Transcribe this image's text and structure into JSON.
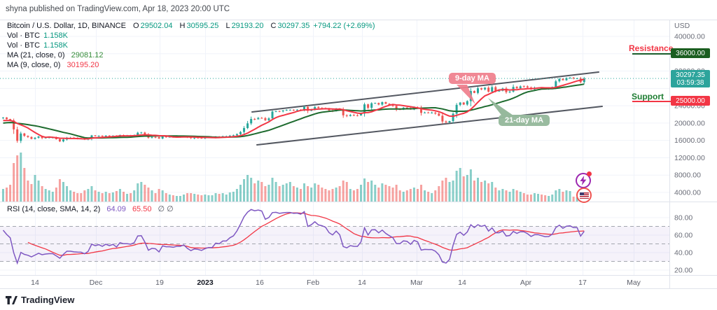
{
  "attribution": "shyna published on TradingView.com, Apr 18, 2023 20:00 UTC",
  "watermark": "TradingView",
  "legend": {
    "symbol": "Bitcoin / U.S. Dollar, 1D, BINANCE",
    "o_label": "O",
    "o": "29502.04",
    "h_label": "H",
    "h": "30595.25",
    "l_label": "L",
    "l": "29193.20",
    "c_label": "C",
    "c": "30297.35",
    "change": "+794.22 (+2.69%)",
    "vol1_label": "Vol · BTC",
    "vol1": "1.158K",
    "vol2_label": "Vol · BTC",
    "vol2": "1.158K",
    "ma21_label": "MA (21, close, 0)",
    "ma21": "29081.12",
    "ma9_label": "MA (9, close, 0)",
    "ma9": "30195.20"
  },
  "rsi_legend": {
    "label": "RSI (14, close, SMA, 14, 2)",
    "rsi": "64.09",
    "sma": "65.50",
    "extra": "∅ ∅"
  },
  "annotations": {
    "axis_currency": "USD",
    "resistance_label": "Resistance",
    "resistance_badge": "36000.00",
    "support_label": "Support",
    "support_badge": "25000.00",
    "price_badge": "30297.35",
    "countdown": "03:59:38",
    "ma9_callout": "9-day MA",
    "ma21_callout": "21-day MA"
  },
  "colors": {
    "up": "#26a69a",
    "down": "#ef5350",
    "ma9": "#f23645",
    "ma21": "#1e6b2f",
    "rsi": "#7e57c2",
    "rsi_sma": "#f23645",
    "resistance_badge_bg": "#1b5e20",
    "support_badge_bg": "#f23645",
    "price_badge_bg": "#2da49c",
    "channel": "#545861",
    "grid": "#f0f3fa",
    "axis_text": "#6a6d78"
  },
  "chart_data": {
    "type": "candlestick+volume+rsi",
    "title": "Bitcoin / U.S. Dollar, 1D, BINANCE",
    "last_ohlc": {
      "open": 29502.04,
      "high": 30595.25,
      "low": 29193.2,
      "close": 30297.35,
      "change": 794.22,
      "change_pct": 2.69
    },
    "current_price": 30297.35,
    "resistance": 36000,
    "support": 25000,
    "visible_start_index": 20,
    "closes": [
      19260,
      19550,
      19330,
      19040,
      19160,
      19570,
      19170,
      19330,
      19080,
      20080,
      20770,
      20280,
      20820,
      20630,
      20490,
      20150,
      20480,
      20150,
      20210,
      21150,
      21300,
      20920,
      20600,
      18550,
      15900,
      17600,
      17050,
      16800,
      16350,
      16620,
      16900,
      16550,
      16650,
      16700,
      16700,
      16280,
      15780,
      16220,
      16600,
      16600,
      16500,
      16450,
      16440,
      16220,
      16440,
      17160,
      16980,
      17090,
      16910,
      17110,
      16970,
      17090,
      16840,
      17230,
      17130,
      17130,
      17090,
      17210,
      17780,
      17810,
      17360,
      16630,
      16780,
      16740,
      16440,
      16900,
      16820,
      16820,
      16780,
      16840,
      16840,
      16920,
      16700,
      16540,
      16630,
      16600,
      16540,
      16620,
      16670,
      16670,
      16860,
      16830,
      16950,
      16950,
      17090,
      17180,
      17440,
      17940,
      18850,
      19930,
      20950,
      20880,
      21180,
      21130,
      20670,
      21080,
      22660,
      22780,
      22710,
      22920,
      23060,
      23060,
      23010,
      23080,
      23030,
      23740,
      22830,
      23130,
      23720,
      23490,
      23430,
      23330,
      22930,
      22760,
      23250,
      22960,
      21790,
      21630,
      21860,
      21780,
      21770,
      22200,
      24320,
      23520,
      24570,
      24630,
      24270,
      24830,
      24450,
      24180,
      23940,
      23180,
      23160,
      23550,
      23490,
      23130,
      23640,
      23460,
      22350,
      22430,
      22410,
      22410,
      22200,
      21700,
      20360,
      20150,
      20470,
      22160,
      24200,
      24740,
      24280,
      25060,
      27400,
      26960,
      28030,
      27770,
      28160,
      27250,
      28290,
      27460,
      27460,
      27970,
      27120,
      27260,
      28350,
      28030,
      28470,
      28460,
      28200,
      27790,
      28160,
      28170,
      28040,
      27920,
      27940,
      28330,
      29640,
      30220,
      29890,
      30400,
      30480,
      30310,
      30310,
      29450,
      30297.35
    ],
    "volumes": [
      12,
      12,
      12,
      12,
      12,
      12,
      12,
      12,
      12,
      12,
      12,
      12,
      12,
      12,
      12,
      12,
      12,
      12,
      12,
      12,
      18,
      20,
      24,
      55,
      66,
      70,
      48,
      30,
      25,
      38,
      30,
      22,
      18,
      16,
      14,
      20,
      32,
      28,
      22,
      16,
      14,
      12,
      12,
      16,
      18,
      22,
      16,
      14,
      12,
      14,
      12,
      13,
      15,
      18,
      14,
      11,
      12,
      16,
      26,
      28,
      24,
      20,
      16,
      12,
      18,
      16,
      12,
      10,
      9,
      8,
      8,
      10,
      12,
      12,
      11,
      10,
      9,
      10,
      9,
      9,
      12,
      11,
      12,
      10,
      13,
      14,
      18,
      24,
      32,
      38,
      34,
      26,
      30,
      28,
      22,
      24,
      34,
      28,
      22,
      24,
      26,
      28,
      22,
      20,
      18,
      26,
      22,
      20,
      26,
      24,
      20,
      18,
      16,
      18,
      20,
      22,
      30,
      28,
      18,
      16,
      18,
      24,
      33,
      28,
      30,
      24,
      20,
      26,
      24,
      22,
      20,
      24,
      16,
      14,
      16,
      18,
      20,
      18,
      24,
      16,
      14,
      12,
      16,
      22,
      30,
      34,
      28,
      30,
      44,
      48,
      36,
      38,
      46,
      30,
      34,
      28,
      30,
      26,
      28,
      20,
      16,
      18,
      16,
      14,
      18,
      16,
      14,
      12,
      10,
      10,
      12,
      11,
      10,
      9,
      8,
      10,
      16,
      18,
      14,
      16,
      15,
      7,
      6,
      11,
      12
    ],
    "y_axis": {
      "currency": "USD",
      "ticks": [
        [
          40000,
          "40000.00"
        ],
        [
          32000,
          "32000.00"
        ],
        [
          24000,
          "24000.00"
        ],
        [
          20000,
          "20000.00"
        ],
        [
          16000,
          "16000.00"
        ],
        [
          12000,
          "12000.00"
        ],
        [
          8000,
          "8000.00"
        ],
        [
          4000,
          "4000.00"
        ]
      ],
      "grid_step": 4000,
      "range": [
        3000,
        41000
      ]
    },
    "rsi_axis": {
      "ticks": [
        [
          80,
          "80.00"
        ],
        [
          60,
          "60.00"
        ],
        [
          40,
          "40.00"
        ],
        [
          20,
          "20.00"
        ]
      ],
      "bands": [
        70,
        50,
        30
      ],
      "last_rsi": 64.09,
      "last_sma": 65.5
    },
    "x_axis": {
      "ticks": [
        [
          "14",
          50,
          0
        ],
        [
          "Dec",
          137,
          0
        ],
        [
          "19",
          228,
          0
        ],
        [
          "2023",
          293,
          1
        ],
        [
          "16",
          371,
          0
        ],
        [
          "Feb",
          447,
          0
        ],
        [
          "14",
          517,
          0
        ],
        [
          "Mar",
          595,
          0
        ],
        [
          "14",
          660,
          0
        ],
        [
          "Apr",
          751,
          0
        ],
        [
          "17",
          832,
          0
        ],
        [
          "May",
          905,
          0
        ]
      ]
    },
    "annotations": {
      "channel_lines": [
        [
          [
            360,
            132
          ],
          [
            855,
            75
          ]
        ],
        [
          [
            367,
            179
          ],
          [
            860,
            124
          ]
        ]
      ],
      "ma9_tail": "652,93 667,93 679,121",
      "ma21_tail": "697,112 718,139 736,139"
    }
  }
}
